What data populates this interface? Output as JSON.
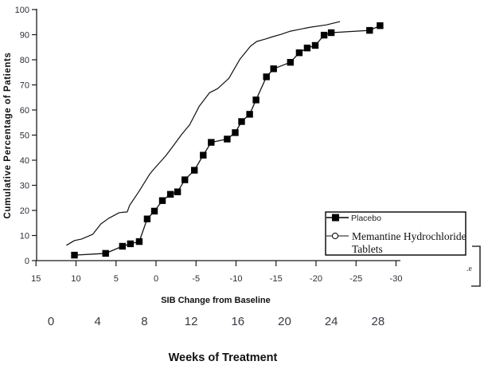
{
  "chart": {
    "y_title": "Cumulative Percentage of Patients",
    "x_title": "SIB Change from Baseline",
    "weeks_title": "Weeks of Treatment"
  },
  "legend": {
    "placebo_label": "Placebo",
    "memantine_label_line1": "Memantine Hydrochloride",
    "memantine_label_line2": "Tablets"
  },
  "annotation": {
    "text": ".e"
  },
  "colors": {
    "line": "#111111",
    "marker": "#000000",
    "axis": "#1a1a1a"
  },
  "chart_data": {
    "type": "line",
    "title": "",
    "xlabel": "SIB Change from Baseline",
    "ylabel": "Cumulative Percentage of Patients",
    "x_axis_reversed": true,
    "xlim": [
      15,
      -30
    ],
    "ylim": [
      0,
      100
    ],
    "x_ticks": [
      15,
      10,
      5,
      0,
      -5,
      -10,
      -15,
      -20,
      -25,
      -30
    ],
    "y_ticks": [
      0,
      10,
      20,
      30,
      40,
      50,
      60,
      70,
      80,
      90,
      100
    ],
    "grid": false,
    "legend_position": "inside-right",
    "secondary_x_axis": {
      "title": "Weeks of Treatment",
      "ticks": [
        0,
        4,
        8,
        12,
        16,
        20,
        24,
        28
      ]
    },
    "series": [
      {
        "name": "Placebo",
        "marker": "filled-square",
        "points": [
          [
            10.2,
            2.2
          ],
          [
            6.3,
            2.9
          ],
          [
            4.2,
            5.7
          ],
          [
            3.2,
            6.7
          ],
          [
            2.1,
            7.6
          ],
          [
            1.1,
            16.6
          ],
          [
            0.2,
            19.7
          ],
          [
            -0.8,
            23.9
          ],
          [
            -1.8,
            26.4
          ],
          [
            -2.7,
            27.4
          ],
          [
            -3.6,
            32.2
          ],
          [
            -4.8,
            36.0
          ],
          [
            -5.9,
            42.0
          ],
          [
            -6.9,
            47.1
          ],
          [
            -8.9,
            48.4
          ],
          [
            -9.9,
            51.0
          ],
          [
            -10.7,
            55.4
          ],
          [
            -11.7,
            58.3
          ],
          [
            -12.5,
            64.0
          ],
          [
            -13.8,
            73.2
          ],
          [
            -14.7,
            76.4
          ],
          [
            -16.8,
            79.0
          ],
          [
            -17.9,
            82.8
          ],
          [
            -18.9,
            84.7
          ],
          [
            -19.9,
            85.7
          ],
          [
            -21.0,
            89.8
          ],
          [
            -21.9,
            90.8
          ],
          [
            -26.7,
            91.7
          ],
          [
            -28.0,
            93.6
          ]
        ]
      },
      {
        "name": "Memantine Hydrochloride Tablets",
        "marker": "none",
        "points": [
          [
            11.2,
            6.1
          ],
          [
            10.2,
            8.0
          ],
          [
            9.3,
            8.6
          ],
          [
            7.9,
            10.5
          ],
          [
            6.9,
            14.6
          ],
          [
            5.9,
            16.9
          ],
          [
            4.6,
            19.1
          ],
          [
            3.6,
            19.4
          ],
          [
            3.3,
            22.0
          ],
          [
            2.1,
            27.7
          ],
          [
            0.8,
            34.4
          ],
          [
            0.4,
            36.0
          ],
          [
            -1.2,
            41.7
          ],
          [
            -2.2,
            45.9
          ],
          [
            -3.2,
            50.3
          ],
          [
            -4.2,
            54.1
          ],
          [
            -5.4,
            61.5
          ],
          [
            -6.7,
            66.9
          ],
          [
            -7.7,
            68.5
          ],
          [
            -9.1,
            72.6
          ],
          [
            -10.5,
            80.3
          ],
          [
            -11.8,
            85.4
          ],
          [
            -12.6,
            87.3
          ],
          [
            -13.6,
            88.2
          ],
          [
            -14.6,
            89.2
          ],
          [
            -15.6,
            90.1
          ],
          [
            -16.8,
            91.4
          ],
          [
            -19.3,
            93.0
          ],
          [
            -21.3,
            93.9
          ],
          [
            -23.0,
            95.2
          ]
        ]
      }
    ]
  }
}
